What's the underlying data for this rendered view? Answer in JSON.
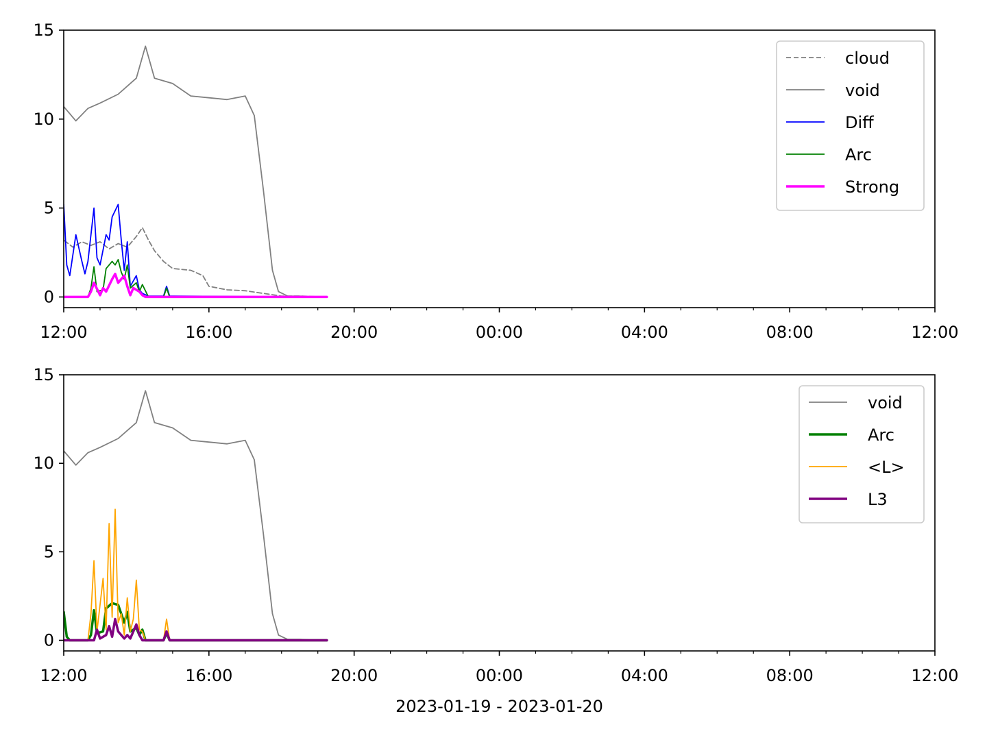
{
  "chart_data": [
    {
      "type": "line",
      "title": "",
      "xlabel": "",
      "ylabel": "",
      "xlim": [
        "2023-01-19 12:00",
        "2023-01-20 12:00"
      ],
      "ylim": [
        -0.6,
        15
      ],
      "xticks": [
        "12:00",
        "16:00",
        "20:00",
        "00:00",
        "04:00",
        "08:00",
        "12:00"
      ],
      "yticks": [
        "0",
        "5",
        "10",
        "15"
      ],
      "grid": false,
      "legend_position": "top-right",
      "legend": [
        {
          "label": "cloud",
          "color": "#808080",
          "style": "dashed"
        },
        {
          "label": "void",
          "color": "#808080",
          "style": "solid"
        },
        {
          "label": "Diff",
          "color": "#0000ff",
          "style": "solid"
        },
        {
          "label": "Arc",
          "color": "#008000",
          "style": "solid"
        },
        {
          "label": "Strong",
          "color": "#ff00ff",
          "style": "solid-thick"
        }
      ],
      "series": [
        {
          "name": "cloud",
          "color": "#808080",
          "dash": true,
          "width": 1.8,
          "x": [
            "14:00",
            "14:30",
            "15:00",
            "15:30",
            "16:00",
            "16:30",
            "17:00",
            "18:00",
            "19:00",
            "19:30",
            "20:00",
            "20:15",
            "20:30",
            "20:45",
            "21:00",
            "21:15",
            "21:30",
            "21:40",
            "21:50",
            "22:00",
            "22:15",
            "22:30",
            "22:45",
            "23:00",
            "23:15",
            "23:30",
            "23:45",
            "00:00",
            "00:15",
            "00:30",
            "00:45",
            "01:00",
            "01:15",
            "01:30",
            "01:45",
            "02:00",
            "02:10",
            "02:20",
            "02:30",
            "02:45",
            "03:00",
            "03:30",
            "03:50",
            "04:00",
            "04:30",
            "05:00",
            "05:30",
            "06:00",
            "06:30",
            "07:00",
            "07:15"
          ],
          "y": [
            0,
            0.05,
            0.1,
            0.15,
            0.2,
            0.35,
            0.4,
            0.4,
            0.45,
            0.55,
            0.7,
            0.9,
            1.5,
            1.7,
            1.2,
            0.9,
            1.3,
            2.2,
            4.1,
            2.1,
            1.8,
            1.1,
            0.8,
            1.0,
            1.4,
            2.6,
            3.4,
            3.2,
            2.8,
            3.1,
            2.9,
            3.1,
            2.7,
            3.0,
            2.8,
            3.4,
            3.9,
            3.2,
            2.6,
            2.0,
            1.6,
            1.5,
            1.2,
            0.6,
            0.4,
            0.35,
            0.2,
            0.05,
            0.05,
            0.02,
            0
          ]
        },
        {
          "name": "void",
          "color": "#808080",
          "dash": false,
          "width": 1.8,
          "x": [
            "14:00",
            "14:20",
            "14:40",
            "14:50",
            "15:10",
            "15:30",
            "15:50",
            "16:00",
            "16:10",
            "16:15",
            "16:20",
            "16:30",
            "17:00",
            "17:30",
            "18:00",
            "18:30",
            "18:50",
            "19:00",
            "19:10",
            "19:30",
            "20:00",
            "20:20",
            "20:40",
            "21:00",
            "21:30",
            "21:50",
            "22:00",
            "22:20",
            "22:40",
            "23:00",
            "23:30",
            "00:00",
            "00:20",
            "00:40",
            "01:00",
            "01:30",
            "02:00",
            "02:15",
            "02:30",
            "03:00",
            "03:30",
            "04:00",
            "04:30",
            "05:00",
            "05:15",
            "05:30",
            "05:45",
            "05:55",
            "06:10",
            "06:30",
            "07:00",
            "07:15"
          ],
          "y": [
            0,
            0.4,
            0.7,
            0.6,
            0.2,
            0.15,
            0.2,
            1.5,
            7.5,
            9.4,
            5.8,
            5.9,
            7.5,
            8.6,
            9.4,
            10.5,
            9.5,
            7.6,
            9.4,
            10.5,
            11.2,
            12.5,
            11.6,
            11.2,
            10.8,
            10.9,
            11.4,
            11.6,
            11.0,
            10.2,
            10.5,
            10.7,
            9.9,
            10.6,
            10.9,
            11.4,
            12.3,
            14.1,
            12.3,
            12.0,
            11.3,
            11.2,
            11.1,
            11.3,
            10.2,
            6.0,
            1.5,
            0.3,
            0.05,
            0.05,
            0,
            0
          ]
        },
        {
          "name": "Diff",
          "color": "#0000ff",
          "dash": false,
          "width": 1.8,
          "x": [
            "14:00",
            "20:10",
            "20:15",
            "20:20",
            "20:30",
            "20:40",
            "20:45",
            "20:50",
            "20:55",
            "21:00",
            "21:05",
            "21:10",
            "21:30",
            "21:35",
            "21:40",
            "21:45",
            "21:50",
            "21:55",
            "22:00",
            "22:05",
            "22:10",
            "22:20",
            "23:00",
            "23:20",
            "23:30",
            "23:35",
            "23:40",
            "23:50",
            "23:55",
            "00:00",
            "00:05",
            "00:10",
            "00:20",
            "00:30",
            "00:35",
            "00:40",
            "00:50",
            "00:55",
            "01:00",
            "01:10",
            "01:15",
            "01:20",
            "01:30",
            "01:35",
            "01:40",
            "01:45",
            "01:50",
            "02:00",
            "02:05",
            "02:10",
            "02:20",
            "02:45",
            "02:50",
            "02:55",
            "07:15"
          ],
          "y": [
            0,
            0,
            1.0,
            0.2,
            0.6,
            2.1,
            1.5,
            2.6,
            1.3,
            1.8,
            0.5,
            0.1,
            0.3,
            1.3,
            1.4,
            3.2,
            5.7,
            2.4,
            0.2,
            0.9,
            0.1,
            0.05,
            0.2,
            0.6,
            1.1,
            3.4,
            2.0,
            2.3,
            1.3,
            5.2,
            1.8,
            1.2,
            3.5,
            2.0,
            1.3,
            2.0,
            5.0,
            2.2,
            1.8,
            3.5,
            3.2,
            4.5,
            5.2,
            3.2,
            1.5,
            3.1,
            0.6,
            1.2,
            0.4,
            0.2,
            0.05,
            0.05,
            0.6,
            0.05,
            0
          ]
        },
        {
          "name": "Arc",
          "color": "#008000",
          "dash": false,
          "width": 1.8,
          "x": [
            "14:00",
            "20:20",
            "20:25",
            "20:30",
            "20:40",
            "20:45",
            "20:55",
            "21:00",
            "21:05",
            "21:45",
            "21:50",
            "21:55",
            "22:00",
            "00:40",
            "00:45",
            "00:50",
            "00:55",
            "01:05",
            "01:10",
            "01:20",
            "01:25",
            "01:30",
            "01:35",
            "01:40",
            "01:45",
            "01:50",
            "02:00",
            "02:05",
            "02:10",
            "02:20",
            "02:45",
            "02:50",
            "02:55",
            "07:15"
          ],
          "y": [
            0,
            0,
            1.0,
            0.2,
            0.3,
            1.3,
            0.8,
            0.9,
            0.1,
            0.1,
            3.2,
            0.3,
            0,
            0,
            0.5,
            1.7,
            0.3,
            0.4,
            1.6,
            2.0,
            1.8,
            2.1,
            1.4,
            1.0,
            1.8,
            0.5,
            0.8,
            0.3,
            0.7,
            0,
            0,
            0.5,
            0,
            0
          ]
        },
        {
          "name": "Strong",
          "color": "#ff00ff",
          "dash": false,
          "width": 3.5,
          "x": [
            "14:00",
            "20:35",
            "20:40",
            "20:45",
            "20:50",
            "20:55",
            "21:00",
            "21:05",
            "21:10",
            "21:45",
            "21:50",
            "21:55",
            "22:00",
            "00:40",
            "00:45",
            "00:50",
            "01:00",
            "01:05",
            "01:10",
            "01:20",
            "01:25",
            "01:30",
            "01:40",
            "01:45",
            "01:50",
            "01:55",
            "02:00",
            "02:05",
            "02:10",
            "02:15",
            "07:15"
          ],
          "y": [
            0,
            0,
            0.3,
            0.9,
            0.4,
            0.8,
            0.9,
            0.3,
            0,
            0,
            2.2,
            0.2,
            0,
            0,
            0.3,
            0.8,
            0.1,
            0.5,
            0.3,
            1.0,
            1.3,
            0.8,
            1.2,
            0.6,
            0.1,
            0.5,
            0.4,
            0.3,
            0.1,
            0,
            0
          ]
        }
      ]
    },
    {
      "type": "line",
      "title": "",
      "xlabel": "2023-01-19 - 2023-01-20",
      "ylabel": "",
      "xlim": [
        "2023-01-19 12:00",
        "2023-01-20 12:00"
      ],
      "ylim": [
        -0.6,
        15
      ],
      "xticks": [
        "12:00",
        "16:00",
        "20:00",
        "00:00",
        "04:00",
        "08:00",
        "12:00"
      ],
      "yticks": [
        "0",
        "5",
        "10",
        "15"
      ],
      "grid": false,
      "legend_position": "top-right",
      "legend": [
        {
          "label": "void",
          "color": "#808080",
          "style": "solid"
        },
        {
          "label": "Arc",
          "color": "#008000",
          "style": "solid-thick"
        },
        {
          "label": "<L>",
          "color": "#ffa500",
          "style": "solid"
        },
        {
          "label": "L3",
          "color": "#800080",
          "style": "solid-thick"
        }
      ],
      "series": [
        {
          "name": "void",
          "color": "#808080",
          "dash": false,
          "width": 1.8,
          "x": [
            "14:00",
            "14:20",
            "14:40",
            "14:50",
            "15:10",
            "15:30",
            "15:50",
            "16:00",
            "16:10",
            "16:15",
            "16:20",
            "16:30",
            "17:00",
            "17:30",
            "18:00",
            "18:30",
            "18:50",
            "19:00",
            "19:10",
            "19:30",
            "20:00",
            "20:20",
            "20:40",
            "21:00",
            "21:30",
            "21:50",
            "22:00",
            "22:20",
            "22:40",
            "23:00",
            "23:30",
            "00:00",
            "00:20",
            "00:40",
            "01:00",
            "01:30",
            "02:00",
            "02:15",
            "02:30",
            "03:00",
            "03:30",
            "04:00",
            "04:30",
            "05:00",
            "05:15",
            "05:30",
            "05:45",
            "05:55",
            "06:10",
            "06:30",
            "07:00",
            "07:15"
          ],
          "y": [
            0,
            0.4,
            0.7,
            0.6,
            0.2,
            0.15,
            0.2,
            1.5,
            7.5,
            9.4,
            5.8,
            5.9,
            7.5,
            8.6,
            9.4,
            10.5,
            9.5,
            7.6,
            9.4,
            10.5,
            11.2,
            12.5,
            11.6,
            11.2,
            10.8,
            10.9,
            11.4,
            11.6,
            11.0,
            10.2,
            10.5,
            10.7,
            9.9,
            10.6,
            10.9,
            11.4,
            12.3,
            14.1,
            12.3,
            12.0,
            11.3,
            11.2,
            11.1,
            11.3,
            10.2,
            6.0,
            1.5,
            0.3,
            0.05,
            0.05,
            0,
            0
          ]
        },
        {
          "name": "Arc",
          "color": "#008000",
          "dash": false,
          "width": 3.5,
          "x": [
            "14:00",
            "20:10",
            "20:15",
            "20:20",
            "20:30",
            "20:35",
            "20:45",
            "20:50",
            "21:00",
            "21:05",
            "21:10",
            "21:40",
            "21:45",
            "21:50",
            "21:55",
            "22:00",
            "23:00",
            "23:10",
            "23:30",
            "23:50",
            "23:55",
            "00:00",
            "00:05",
            "00:10",
            "00:40",
            "00:45",
            "00:50",
            "00:55",
            "01:05",
            "01:10",
            "01:20",
            "01:30",
            "01:35",
            "01:40",
            "01:45",
            "01:50",
            "02:00",
            "02:05",
            "02:10",
            "02:15",
            "02:45",
            "02:50",
            "02:55",
            "07:15"
          ],
          "y": [
            0,
            0,
            0.3,
            0.1,
            0.5,
            0.1,
            0.8,
            0.3,
            0.6,
            0.1,
            0,
            0,
            0.6,
            4.9,
            0.5,
            0,
            0,
            0.3,
            0.2,
            0.1,
            1.7,
            1.6,
            0.2,
            0,
            0,
            0.3,
            1.7,
            0.4,
            0.5,
            1.8,
            2.1,
            2.0,
            1.5,
            1.0,
            1.6,
            0.5,
            0.7,
            0.3,
            0.6,
            0,
            0,
            0.4,
            0,
            0
          ]
        },
        {
          "name": "<L>",
          "color": "#ffa500",
          "dash": false,
          "width": 1.8,
          "x": [
            "14:00",
            "20:20",
            "20:25",
            "20:30",
            "20:40",
            "20:45",
            "20:50",
            "20:55",
            "21:00",
            "21:05",
            "21:10",
            "21:45",
            "21:50",
            "21:52",
            "21:55",
            "22:00",
            "00:40",
            "00:45",
            "00:50",
            "00:55",
            "01:05",
            "01:10",
            "01:15",
            "01:20",
            "01:25",
            "01:30",
            "01:35",
            "01:40",
            "01:45",
            "01:50",
            "01:55",
            "02:00",
            "02:05",
            "02:10",
            "02:15",
            "02:45",
            "02:50",
            "02:55",
            "07:15"
          ],
          "y": [
            0,
            0,
            1.7,
            0.2,
            0.3,
            5.0,
            1.0,
            4.3,
            0.5,
            0.2,
            0,
            0,
            9.0,
            13.1,
            1.5,
            0,
            0,
            1.5,
            4.5,
            0.5,
            3.5,
            0.6,
            6.6,
            1.3,
            7.4,
            1.0,
            1.5,
            0.3,
            2.4,
            0.5,
            1.2,
            3.4,
            0.6,
            0.5,
            0,
            0,
            1.2,
            0,
            0
          ]
        },
        {
          "name": "L3",
          "color": "#800080",
          "dash": false,
          "width": 3.5,
          "x": [
            "14:00",
            "20:35",
            "20:40",
            "20:45",
            "20:50",
            "20:55",
            "21:00",
            "21:05",
            "21:45",
            "21:50",
            "21:52",
            "21:55",
            "22:00",
            "00:50",
            "00:55",
            "01:00",
            "01:10",
            "01:15",
            "01:20",
            "01:25",
            "01:30",
            "01:40",
            "01:45",
            "01:50",
            "02:00",
            "02:05",
            "02:10",
            "02:45",
            "02:50",
            "02:55",
            "07:15"
          ],
          "y": [
            0,
            0,
            0.3,
            0.9,
            0.2,
            0.6,
            0.3,
            0,
            0,
            3.5,
            5.2,
            0.6,
            0,
            0,
            0.6,
            0.1,
            0.3,
            0.8,
            0.2,
            1.2,
            0.5,
            0.1,
            0.3,
            0.1,
            0.9,
            0.3,
            0,
            0,
            0.5,
            0,
            0
          ]
        }
      ]
    }
  ]
}
